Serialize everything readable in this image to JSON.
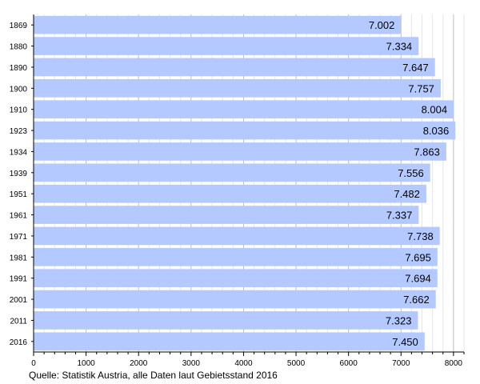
{
  "chart_data": {
    "type": "bar",
    "orientation": "horizontal",
    "categories": [
      "1869",
      "1880",
      "1890",
      "1900",
      "1910",
      "1923",
      "1934",
      "1939",
      "1951",
      "1961",
      "1971",
      "1981",
      "1991",
      "2001",
      "2011",
      "2016"
    ],
    "values": [
      7002,
      7334,
      7647,
      7757,
      8004,
      8036,
      7863,
      7556,
      7482,
      7337,
      7738,
      7695,
      7694,
      7662,
      7323,
      7450
    ],
    "value_labels": [
      "7.002",
      "7.334",
      "7.647",
      "7.757",
      "8.004",
      "8.036",
      "7.863",
      "7.556",
      "7.482",
      "7.337",
      "7.738",
      "7.695",
      "7.694",
      "7.662",
      "7.323",
      "7.450"
    ],
    "title": "",
    "xlabel": "",
    "ylabel": "",
    "xlim": [
      0,
      8200
    ],
    "x_ticks": [
      0,
      1000,
      2000,
      3000,
      4000,
      5000,
      6000,
      7000,
      8000
    ],
    "grid": true,
    "bar_color": "#b3c9ff",
    "grid_color": "#cccccc"
  },
  "source_note": "Quelle: Statistik Austria, alle Daten laut Gebietsstand 2016"
}
